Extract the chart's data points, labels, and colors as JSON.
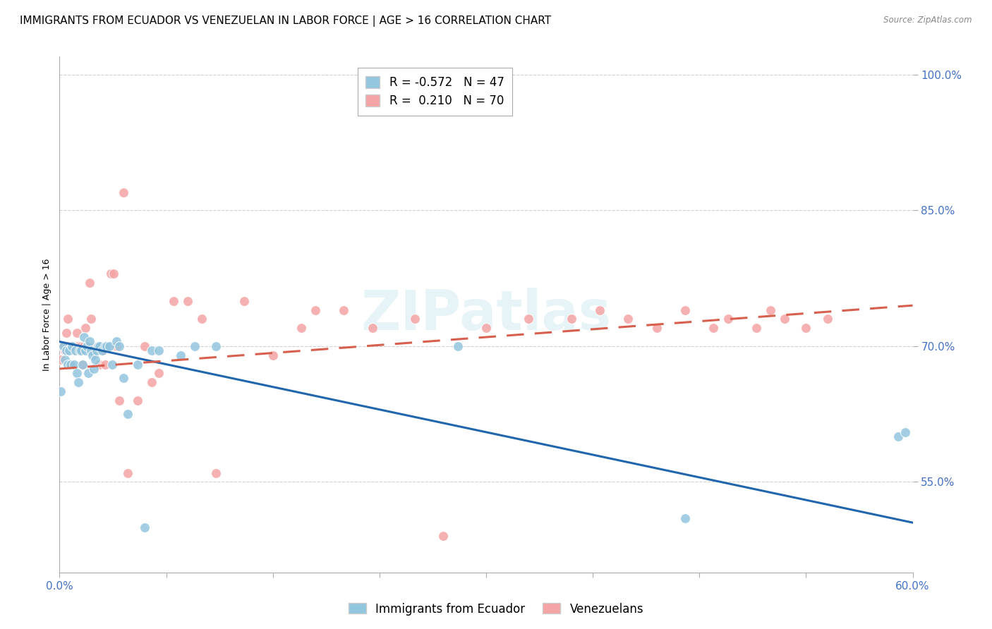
{
  "title": "IMMIGRANTS FROM ECUADOR VS VENEZUELAN IN LABOR FORCE | AGE > 16 CORRELATION CHART",
  "source": "Source: ZipAtlas.com",
  "ylabel": "In Labor Force | Age > 16",
  "xlim": [
    0.0,
    0.6
  ],
  "ylim": [
    0.45,
    1.02
  ],
  "yticks": [
    0.55,
    0.7,
    0.85,
    1.0
  ],
  "ytick_labels": [
    "55.0%",
    "70.0%",
    "85.0%",
    "100.0%"
  ],
  "xtick_positions": [
    0.0,
    0.075,
    0.15,
    0.225,
    0.3,
    0.375,
    0.45,
    0.525,
    0.6
  ],
  "xtick_labels": [
    "0.0%",
    "",
    "",
    "",
    "",
    "",
    "",
    "",
    "60.0%"
  ],
  "ecuador_color": "#92c5de",
  "venezuela_color": "#f4a4a4",
  "ecuador_R": -0.572,
  "ecuador_N": 47,
  "venezuela_R": 0.21,
  "venezuela_N": 70,
  "ecuador_line_color": "#2166ac",
  "venezuela_line_color": "#d6604d",
  "ecuador_line_x0": 0.0,
  "ecuador_line_y0": 0.705,
  "ecuador_line_x1": 0.6,
  "ecuador_line_y1": 0.505,
  "venezuela_line_x0": 0.0,
  "venezuela_line_y0": 0.675,
  "venezuela_line_x1": 0.6,
  "venezuela_line_y1": 0.745,
  "watermark": "ZIPatlas",
  "ecuador_scatter_x": [
    0.001,
    0.003,
    0.004,
    0.005,
    0.006,
    0.007,
    0.008,
    0.009,
    0.01,
    0.011,
    0.012,
    0.013,
    0.014,
    0.015,
    0.016,
    0.017,
    0.018,
    0.019,
    0.02,
    0.021,
    0.022,
    0.023,
    0.024,
    0.025,
    0.026,
    0.027,
    0.028,
    0.03,
    0.032,
    0.033,
    0.035,
    0.037,
    0.04,
    0.042,
    0.045,
    0.048,
    0.055,
    0.06,
    0.065,
    0.07,
    0.085,
    0.095,
    0.11,
    0.28,
    0.44,
    0.59,
    0.595
  ],
  "ecuador_scatter_y": [
    0.65,
    0.7,
    0.685,
    0.695,
    0.68,
    0.695,
    0.68,
    0.7,
    0.68,
    0.695,
    0.67,
    0.66,
    0.695,
    0.695,
    0.68,
    0.71,
    0.695,
    0.7,
    0.67,
    0.705,
    0.695,
    0.69,
    0.675,
    0.685,
    0.695,
    0.7,
    0.7,
    0.695,
    0.7,
    0.7,
    0.7,
    0.68,
    0.705,
    0.7,
    0.665,
    0.625,
    0.68,
    0.5,
    0.695,
    0.695,
    0.69,
    0.7,
    0.7,
    0.7,
    0.51,
    0.6,
    0.605
  ],
  "venezuela_scatter_x": [
    0.001,
    0.002,
    0.003,
    0.004,
    0.005,
    0.006,
    0.006,
    0.007,
    0.008,
    0.009,
    0.01,
    0.01,
    0.011,
    0.012,
    0.013,
    0.014,
    0.015,
    0.016,
    0.017,
    0.018,
    0.019,
    0.02,
    0.021,
    0.022,
    0.023,
    0.024,
    0.025,
    0.026,
    0.027,
    0.028,
    0.029,
    0.03,
    0.032,
    0.034,
    0.036,
    0.038,
    0.04,
    0.042,
    0.045,
    0.048,
    0.055,
    0.06,
    0.065,
    0.07,
    0.08,
    0.09,
    0.1,
    0.11,
    0.13,
    0.15,
    0.17,
    0.18,
    0.2,
    0.22,
    0.25,
    0.27,
    0.3,
    0.33,
    0.36,
    0.38,
    0.4,
    0.42,
    0.44,
    0.46,
    0.47,
    0.49,
    0.5,
    0.51,
    0.525,
    0.54
  ],
  "venezuela_scatter_y": [
    0.685,
    0.7,
    0.7,
    0.695,
    0.715,
    0.7,
    0.73,
    0.7,
    0.68,
    0.7,
    0.695,
    0.7,
    0.7,
    0.715,
    0.7,
    0.695,
    0.7,
    0.68,
    0.7,
    0.72,
    0.7,
    0.7,
    0.77,
    0.73,
    0.7,
    0.695,
    0.7,
    0.7,
    0.7,
    0.68,
    0.7,
    0.695,
    0.68,
    0.7,
    0.78,
    0.78,
    0.7,
    0.64,
    0.87,
    0.56,
    0.64,
    0.7,
    0.66,
    0.67,
    0.75,
    0.75,
    0.73,
    0.56,
    0.75,
    0.69,
    0.72,
    0.74,
    0.74,
    0.72,
    0.73,
    0.49,
    0.72,
    0.73,
    0.73,
    0.74,
    0.73,
    0.72,
    0.74,
    0.72,
    0.73,
    0.72,
    0.74,
    0.73,
    0.72,
    0.73
  ],
  "background_color": "#ffffff",
  "grid_color": "#d0d0d0",
  "axis_color": "#aaaaaa",
  "tick_color": "#4472c4",
  "title_fontsize": 11,
  "label_fontsize": 9,
  "tick_fontsize": 11,
  "legend_fontsize": 12
}
